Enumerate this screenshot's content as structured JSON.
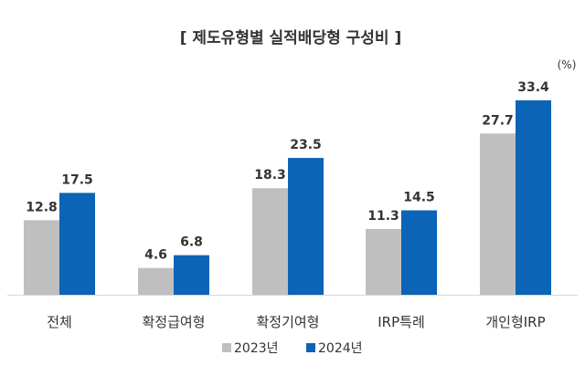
{
  "chart_data": {
    "type": "bar",
    "title": "[ 제도유형별 실적배당형 구성비 ]",
    "unit_label": "(%)",
    "categories": [
      "전체",
      "확정급여형",
      "확정기여형",
      "IRP특례",
      "개인형IRP"
    ],
    "series": [
      {
        "name": "2023년",
        "color": "#bfbfbf",
        "values": [
          12.8,
          4.6,
          18.3,
          11.3,
          27.7
        ]
      },
      {
        "name": "2024년",
        "color": "#0b64b6",
        "values": [
          17.5,
          6.8,
          23.5,
          14.5,
          33.4
        ]
      }
    ],
    "ylim": [
      0,
      35
    ],
    "grid": false,
    "legend": "bottom"
  }
}
